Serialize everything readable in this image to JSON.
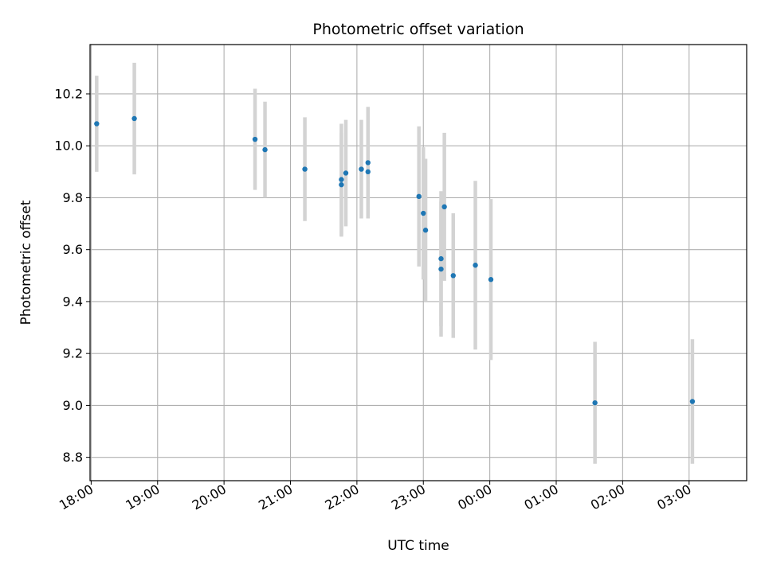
{
  "chart_data": {
    "type": "scatter",
    "title": "Photometric offset variation",
    "xlabel": "UTC time",
    "ylabel": "Photometric offset",
    "x_ticks": [
      "18:00",
      "19:00",
      "20:00",
      "21:00",
      "22:00",
      "23:00",
      "00:00",
      "01:00",
      "02:00",
      "03:00"
    ],
    "y_ticks": [
      "8.8",
      "9.0",
      "9.2",
      "9.4",
      "9.6",
      "9.8",
      "10.0",
      "10.2"
    ],
    "xlim": [
      "17:59",
      "03:52"
    ],
    "ylim": [
      8.71,
      10.39
    ],
    "grid": true,
    "point_color": "#1f77b4",
    "errorbar_color": "#d3d3d3",
    "points": [
      {
        "time": "18:05",
        "y": 10.085,
        "err": 0.185
      },
      {
        "time": "18:39",
        "y": 10.105,
        "err": 0.215
      },
      {
        "time": "20:28",
        "y": 10.025,
        "err": 0.195
      },
      {
        "time": "20:37",
        "y": 9.985,
        "err": 0.185
      },
      {
        "time": "21:13",
        "y": 9.91,
        "err": 0.2
      },
      {
        "time": "21:46",
        "y": 9.87,
        "err": 0.215
      },
      {
        "time": "21:46",
        "y": 9.85,
        "err": 0.2
      },
      {
        "time": "21:50",
        "y": 9.895,
        "err": 0.205
      },
      {
        "time": "22:04",
        "y": 9.91,
        "err": 0.19
      },
      {
        "time": "22:10",
        "y": 9.935,
        "err": 0.215
      },
      {
        "time": "22:10",
        "y": 9.9,
        "err": 0.18
      },
      {
        "time": "22:56",
        "y": 9.805,
        "err": 0.27
      },
      {
        "time": "23:00",
        "y": 9.74,
        "err": 0.255
      },
      {
        "time": "23:02",
        "y": 9.675,
        "err": 0.275
      },
      {
        "time": "23:16",
        "y": 9.565,
        "err": 0.26
      },
      {
        "time": "23:16",
        "y": 9.525,
        "err": 0.26
      },
      {
        "time": "23:19",
        "y": 9.765,
        "err": 0.285
      },
      {
        "time": "23:27",
        "y": 9.5,
        "err": 0.24
      },
      {
        "time": "23:47",
        "y": 9.54,
        "err": 0.325
      },
      {
        "time": "00:01",
        "y": 9.485,
        "err": 0.31
      },
      {
        "time": "01:35",
        "y": 9.01,
        "err": 0.235
      },
      {
        "time": "03:03",
        "y": 9.015,
        "err": 0.24
      }
    ]
  }
}
